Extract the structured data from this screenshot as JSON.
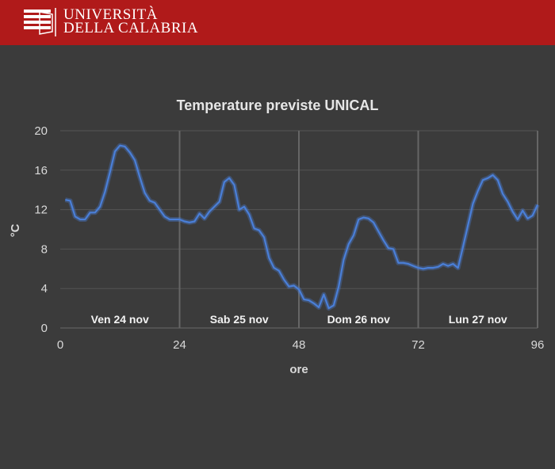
{
  "header": {
    "logo_line1": "UNIVERSITÀ",
    "logo_line2": "DELLA CALABRIA",
    "background": "#b01a1a"
  },
  "chart_data": {
    "type": "line",
    "title": "Temperature previste UNICAL",
    "xlabel": "ore",
    "ylabel": "°C",
    "xlim": [
      0,
      96
    ],
    "ylim": [
      0,
      20
    ],
    "x_ticks": [
      0,
      24,
      48,
      72,
      96
    ],
    "y_ticks": [
      0,
      4,
      8,
      12,
      16,
      20
    ],
    "grid": true,
    "line_color": "#4a7fd8",
    "day_labels": [
      {
        "label": "Ven 24 nov",
        "x_center": 12
      },
      {
        "label": "Sab 25 nov",
        "x_center": 36
      },
      {
        "label": "Dom 26 nov",
        "x_center": 60
      },
      {
        "label": "Lun 27 nov",
        "x_center": 84
      }
    ],
    "series": [
      {
        "x": [
          1,
          2,
          3,
          4,
          5,
          6,
          7,
          8,
          9,
          10,
          11,
          12,
          13,
          14,
          15,
          16,
          17,
          18,
          19,
          20,
          21,
          22,
          23,
          24,
          25,
          26,
          27,
          28,
          29,
          30,
          31,
          32,
          33,
          34,
          35,
          36,
          37,
          38,
          39,
          40,
          41,
          42,
          43,
          44,
          45,
          46,
          47,
          48,
          49,
          50,
          51,
          52,
          53,
          54,
          55,
          56,
          57,
          58,
          59,
          60,
          61,
          62,
          63,
          64,
          65,
          66,
          67,
          68,
          69,
          70,
          71,
          72,
          73,
          74,
          75,
          76,
          77,
          78,
          79,
          80,
          81,
          82,
          83,
          84,
          85,
          86,
          87,
          88,
          89,
          90,
          91,
          92,
          93,
          94,
          95,
          96
        ],
        "values": [
          13,
          12.9,
          11.3,
          11,
          11,
          11.7,
          11.7,
          12.3,
          13.8,
          15.8,
          17.9,
          18.5,
          18.4,
          17.8,
          17,
          15.3,
          13.7,
          12.9,
          12.7,
          12,
          11.3,
          11,
          11,
          11,
          10.8,
          10.7,
          10.8,
          11.6,
          11.1,
          11.8,
          12.3,
          12.8,
          14.8,
          15.2,
          14.5,
          12,
          12.3,
          11.5,
          10.1,
          9.9,
          9.2,
          7.1,
          6.1,
          5.8,
          4.9,
          4.2,
          4.3,
          3.9,
          2.9,
          2.8,
          2.5,
          2.1,
          3.4,
          2,
          2.3,
          4.2,
          6.9,
          8.5,
          9.4,
          11,
          11.2,
          11.1,
          10.7,
          9.8,
          8.9,
          8.1,
          8,
          6.6,
          6.6,
          6.5,
          6.3,
          6.1,
          6,
          6.1,
          6.1,
          6.2,
          6.5,
          6.3,
          6.5,
          6.1,
          8.2,
          10.4,
          12.6,
          13.9,
          15,
          15.2,
          15.5,
          15,
          13.6,
          12.8,
          11.8,
          11,
          11.9,
          11.1,
          11.4,
          12.5
        ]
      }
    ]
  }
}
